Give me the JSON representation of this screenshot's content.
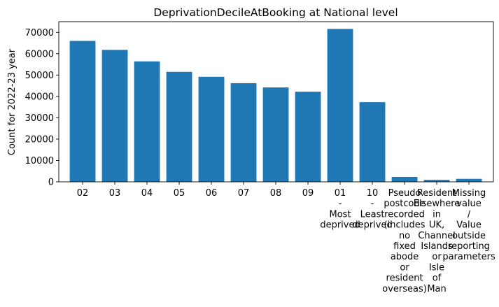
{
  "chart_data": {
    "type": "bar",
    "title": "DeprivationDecileAtBooking at National level",
    "xlabel": "",
    "ylabel": "Count for 2022-23 year",
    "ylim": [
      0,
      75000
    ],
    "yticks": [
      0,
      10000,
      20000,
      30000,
      40000,
      50000,
      60000,
      70000
    ],
    "grid": false,
    "legend": "none",
    "bar_color": "#1f77b4",
    "categories": [
      "02",
      "03",
      "04",
      "05",
      "06",
      "07",
      "08",
      "09",
      "01 - Most deprived",
      "10 - Least deprived",
      "Pseudo postcode recorded (includes no fixed abode or resident overseas)",
      "Resident Elsewhere in UK, Channel Islands or Isle of Man",
      "Missing value / Value outside reporting parameters"
    ],
    "category_lines": [
      [
        "02"
      ],
      [
        "03"
      ],
      [
        "04"
      ],
      [
        "05"
      ],
      [
        "06"
      ],
      [
        "07"
      ],
      [
        "08"
      ],
      [
        "09"
      ],
      [
        "01",
        "-",
        "Most",
        "deprived"
      ],
      [
        "10",
        "-",
        "Least",
        "deprived"
      ],
      [
        "Pseudo",
        "postcode",
        "recorded",
        "(includes",
        "no",
        "fixed",
        "abode",
        "or",
        "resident",
        "overseas)"
      ],
      [
        "Resident",
        "Elsewhere",
        "in",
        "UK,",
        "Channel",
        "Islands",
        "or",
        "Isle",
        "of",
        "Man"
      ],
      [
        "Missing",
        "value",
        "/",
        "Value",
        "outside",
        "reporting",
        "parameters"
      ]
    ],
    "values": [
      66000,
      61800,
      56400,
      51500,
      49200,
      46200,
      44200,
      42200,
      71600,
      37300,
      2300,
      900,
      1400
    ]
  }
}
